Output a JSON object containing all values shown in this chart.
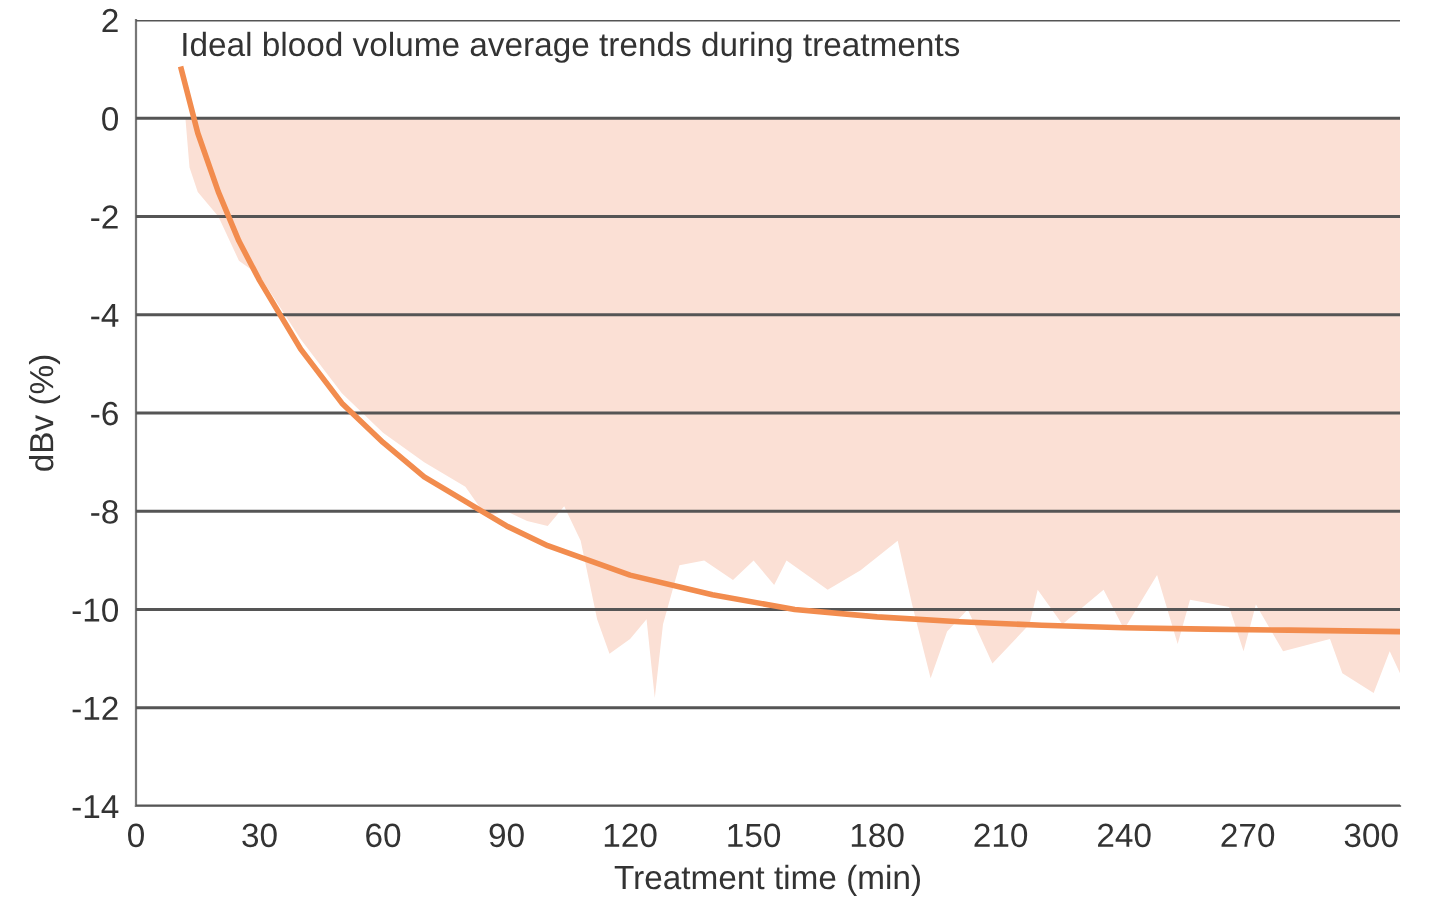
{
  "chart_data": {
    "type": "area",
    "title": "Ideal blood volume average trends during treatments",
    "xlabel": "Treatment time (min)",
    "ylabel": "dBv (%)",
    "xlim": [
      0,
      307
    ],
    "ylim": [
      -14,
      2
    ],
    "xticks": [
      0,
      30,
      60,
      90,
      120,
      150,
      180,
      210,
      240,
      270,
      300
    ],
    "yticks": [
      -14,
      -12,
      -10,
      -8,
      -6,
      -4,
      -2,
      0,
      2
    ],
    "grid": "y",
    "legend": false,
    "series": [
      {
        "color": "#fbe0d5",
        "x": [
          12,
          13,
          15,
          20,
          25,
          30,
          40,
          50,
          60,
          70,
          80,
          85,
          90,
          95,
          100,
          104,
          108,
          112,
          115,
          120,
          124,
          126,
          128,
          132,
          138,
          145,
          150,
          155,
          158,
          168,
          176,
          185,
          188.5,
          193,
          197,
          202,
          208,
          217,
          219,
          225,
          235,
          240,
          248,
          253,
          256,
          265.5,
          269,
          272,
          278.6,
          290,
          293,
          300.6,
          304.5,
          307
        ],
        "values": [
          0,
          -1.0,
          -1.5,
          -2.0,
          -2.9,
          -3.2,
          -4.5,
          -5.6,
          -6.4,
          -7.0,
          -7.5,
          -8.1,
          -8.0,
          -8.2,
          -8.3,
          -7.9,
          -8.6,
          -10.2,
          -10.9,
          -10.6,
          -10.2,
          -11.8,
          -10.3,
          -9.1,
          -9.0,
          -9.4,
          -9.0,
          -9.5,
          -9.0,
          -9.6,
          -9.2,
          -8.6,
          -9.9,
          -11.4,
          -10.45,
          -10.0,
          -11.1,
          -10.3,
          -9.6,
          -10.3,
          -9.6,
          -10.4,
          -9.3,
          -10.7,
          -9.8,
          -9.95,
          -10.85,
          -9.9,
          -10.85,
          -10.6,
          -11.3,
          -11.7,
          -10.85,
          -11.3
        ]
      },
      {
        "type": "line",
        "color": "#f28c4e",
        "x": [
          11,
          15,
          20,
          25,
          30,
          40,
          50,
          60,
          70,
          80,
          90,
          100,
          120,
          140,
          160,
          180,
          200,
          220,
          240,
          260,
          280,
          307
        ],
        "values": [
          1.0,
          -0.3,
          -1.5,
          -2.5,
          -3.3,
          -4.7,
          -5.8,
          -6.6,
          -7.3,
          -7.8,
          -8.3,
          -8.7,
          -9.3,
          -9.7,
          -10.0,
          -10.15,
          -10.25,
          -10.32,
          -10.37,
          -10.4,
          -10.42,
          -10.45
        ]
      }
    ]
  }
}
